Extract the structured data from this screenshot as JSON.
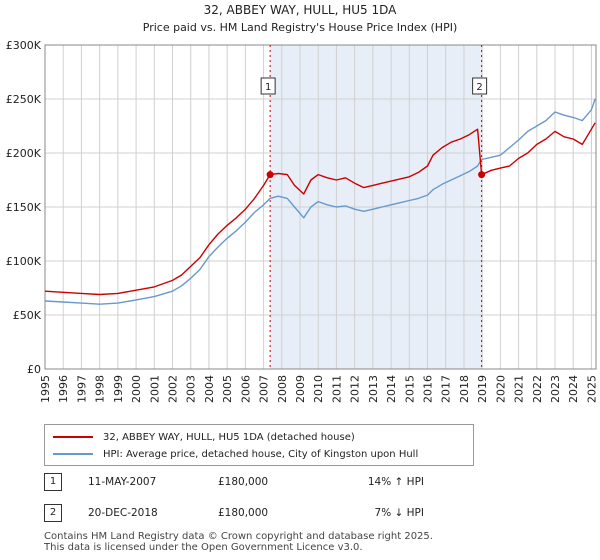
{
  "chart_data": {
    "type": "line",
    "title": "32, ABBEY WAY, HULL, HU5 1DA",
    "subtitle": "Price paid vs. HM Land Registry's House Price Index (HPI)",
    "xlabel": "",
    "ylabel": "",
    "xlim": [
      1995,
      2025.25
    ],
    "ylim": [
      0,
      300000
    ],
    "x_ticks": [
      "1995",
      "1996",
      "1997",
      "1998",
      "1999",
      "2000",
      "2001",
      "2002",
      "2003",
      "2004",
      "2005",
      "2006",
      "2007",
      "2008",
      "2009",
      "2010",
      "2011",
      "2012",
      "2013",
      "2014",
      "2015",
      "2016",
      "2017",
      "2018",
      "2019",
      "2020",
      "2021",
      "2022",
      "2023",
      "2024",
      "2025"
    ],
    "y_ticks": [
      {
        "value": 0,
        "label": "£0"
      },
      {
        "value": 50000,
        "label": "£50K"
      },
      {
        "value": 100000,
        "label": "£100K"
      },
      {
        "value": 150000,
        "label": "£150K"
      },
      {
        "value": 200000,
        "label": "£200K"
      },
      {
        "value": 250000,
        "label": "£250K"
      },
      {
        "value": 300000,
        "label": "£300K"
      }
    ],
    "grid": true,
    "shaded_region": {
      "from": 2007.36,
      "to": 2018.97
    },
    "series": [
      {
        "name": "32, ABBEY WAY, HULL, HU5 1DA (detached house)",
        "color": "#cc0000",
        "x": [
          1995.0,
          1996.0,
          1997.0,
          1998.0,
          1999.0,
          2000.0,
          2001.0,
          2002.0,
          2002.5,
          2003.0,
          2003.5,
          2004.0,
          2004.5,
          2005.0,
          2005.5,
          2006.0,
          2006.5,
          2007.0,
          2007.36,
          2007.8,
          2008.3,
          2008.7,
          2009.2,
          2009.6,
          2010.0,
          2010.5,
          2011.0,
          2011.5,
          2012.0,
          2012.5,
          2013.0,
          2013.5,
          2014.0,
          2014.5,
          2015.0,
          2015.5,
          2016.0,
          2016.3,
          2016.8,
          2017.3,
          2017.8,
          2018.3,
          2018.75,
          2018.97,
          2019.5,
          2020.0,
          2020.5,
          2021.0,
          2021.5,
          2022.0,
          2022.5,
          2023.0,
          2023.5,
          2024.0,
          2024.5,
          2025.0,
          2025.2
        ],
        "y": [
          72000,
          71000,
          70000,
          69000,
          70000,
          73000,
          76000,
          82000,
          87000,
          95000,
          103000,
          115000,
          125000,
          133000,
          140000,
          148000,
          158000,
          170000,
          180000,
          181000,
          180000,
          170000,
          162000,
          175000,
          180000,
          177000,
          175000,
          177000,
          172000,
          168000,
          170000,
          172000,
          174000,
          176000,
          178000,
          182000,
          188000,
          198000,
          205000,
          210000,
          213000,
          217000,
          222000,
          180000,
          184000,
          186000,
          188000,
          195000,
          200000,
          208000,
          213000,
          220000,
          215000,
          213000,
          208000,
          222000,
          228000
        ]
      },
      {
        "name": "HPI: Average price, detached house, City of Kingston upon Hull",
        "color": "#6699cc",
        "x": [
          1995.0,
          1996.0,
          1997.0,
          1998.0,
          1999.0,
          2000.0,
          2001.0,
          2002.0,
          2002.5,
          2003.0,
          2003.5,
          2004.0,
          2004.5,
          2005.0,
          2005.5,
          2006.0,
          2006.5,
          2007.0,
          2007.36,
          2007.8,
          2008.3,
          2008.7,
          2009.2,
          2009.6,
          2010.0,
          2010.5,
          2011.0,
          2011.5,
          2012.0,
          2012.5,
          2013.0,
          2013.5,
          2014.0,
          2014.5,
          2015.0,
          2015.5,
          2016.0,
          2016.3,
          2016.8,
          2017.3,
          2017.8,
          2018.3,
          2018.75,
          2018.97,
          2019.5,
          2020.0,
          2020.5,
          2021.0,
          2021.5,
          2022.0,
          2022.5,
          2023.0,
          2023.5,
          2024.0,
          2024.5,
          2025.0,
          2025.2
        ],
        "y": [
          63000,
          62000,
          61000,
          60000,
          61000,
          64000,
          67000,
          72000,
          77000,
          84000,
          92000,
          104000,
          113000,
          121000,
          128000,
          136000,
          145000,
          152000,
          158000,
          160000,
          158000,
          150000,
          140000,
          150000,
          155000,
          152000,
          150000,
          151000,
          148000,
          146000,
          148000,
          150000,
          152000,
          154000,
          156000,
          158000,
          161000,
          166000,
          171000,
          175000,
          179000,
          183000,
          188000,
          194000,
          196000,
          198000,
          205000,
          212000,
          220000,
          225000,
          230000,
          238000,
          235000,
          233000,
          230000,
          240000,
          250000
        ]
      }
    ],
    "markers": [
      {
        "label": "1",
        "x": 2007.36,
        "y": 180000
      },
      {
        "label": "2",
        "x": 2018.97,
        "y": 180000
      }
    ]
  },
  "legend": {
    "items": [
      {
        "label": "32, ABBEY WAY, HULL, HU5 1DA (detached house)",
        "color": "#cc0000"
      },
      {
        "label": "HPI: Average price, detached house, City of Kingston upon Hull",
        "color": "#6699cc"
      }
    ]
  },
  "sales": [
    {
      "id": "1",
      "date": "11-MAY-2007",
      "price": "£180,000",
      "hpi": "14% ↑ HPI"
    },
    {
      "id": "2",
      "date": "20-DEC-2018",
      "price": "£180,000",
      "hpi": "7% ↓ HPI"
    }
  ],
  "footer": {
    "line1": "Contains HM Land Registry data © Crown copyright and database right 2025.",
    "line2": "This data is licensed under the Open Government Licence v3.0."
  }
}
